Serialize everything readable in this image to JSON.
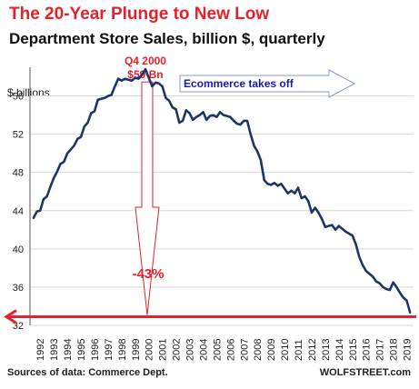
{
  "chart_data": {
    "type": "line",
    "title": "The 20-Year Plunge to New Low",
    "subtitle": "Department Store Sales, billion $, quarterly",
    "ylabel": "$ billions",
    "xlabel": "",
    "ylim": [
      32,
      59
    ],
    "xlim": [
      1991.75,
      2020.0
    ],
    "grid": "horizontal",
    "y_ticks": [
      "32",
      "36",
      "40",
      "44",
      "48",
      "52",
      "56"
    ],
    "x_ticks": [
      "1992",
      "1993",
      "1994",
      "1995",
      "1996",
      "1997",
      "1998",
      "1999",
      "2000",
      "2001",
      "2002",
      "2003",
      "2004",
      "2005",
      "2006",
      "2007",
      "2008",
      "2009",
      "2010",
      "2011",
      "2012",
      "2013",
      "2014",
      "2015",
      "2016",
      "2017",
      "2018",
      "2019"
    ],
    "series": [
      {
        "name": "",
        "x": [
          1992.0,
          1992.25,
          1992.5,
          1992.75,
          1993.0,
          1993.25,
          1993.5,
          1993.75,
          1994.0,
          1994.25,
          1994.5,
          1994.75,
          1995.0,
          1995.25,
          1995.5,
          1995.75,
          1996.0,
          1996.25,
          1996.5,
          1996.75,
          1997.0,
          1997.25,
          1997.5,
          1997.75,
          1998.0,
          1998.25,
          1998.5,
          1998.75,
          1999.0,
          1999.25,
          1999.5,
          1999.75,
          2000.0,
          2000.25,
          2000.5,
          2000.75,
          2001.0,
          2001.25,
          2001.5,
          2001.75,
          2002.0,
          2002.25,
          2002.5,
          2002.75,
          2003.0,
          2003.25,
          2003.5,
          2003.75,
          2004.0,
          2004.25,
          2004.5,
          2004.75,
          2005.0,
          2005.25,
          2005.5,
          2005.75,
          2006.0,
          2006.25,
          2006.5,
          2006.75,
          2007.0,
          2007.25,
          2007.5,
          2007.75,
          2008.0,
          2008.25,
          2008.5,
          2008.75,
          2009.0,
          2009.25,
          2009.5,
          2009.75,
          2010.0,
          2010.25,
          2010.5,
          2010.75,
          2011.0,
          2011.25,
          2011.5,
          2011.75,
          2012.0,
          2012.25,
          2012.5,
          2012.75,
          2013.0,
          2013.25,
          2013.5,
          2013.75,
          2014.0,
          2014.25,
          2014.5,
          2014.75,
          2015.0,
          2015.25,
          2015.5,
          2015.75,
          2016.0,
          2016.25,
          2016.5,
          2016.75,
          2017.0,
          2017.25,
          2017.5,
          2017.75,
          2018.0,
          2018.25,
          2018.5,
          2018.75,
          2019.0,
          2019.25,
          2019.5,
          2019.75
        ],
        "values": [
          43.2,
          43.9,
          44.0,
          45.2,
          45.5,
          46.5,
          47.4,
          48.1,
          48.9,
          49.1,
          50.0,
          50.4,
          50.8,
          51.5,
          51.7,
          52.8,
          53.2,
          54.2,
          54.4,
          55.6,
          55.7,
          55.8,
          56.0,
          56.1,
          57.0,
          57.8,
          57.6,
          57.8,
          57.7,
          57.6,
          57.9,
          57.8,
          58.2,
          58.8,
          57.9,
          57.0,
          57.4,
          57.3,
          57.0,
          55.8,
          55.5,
          54.8,
          54.6,
          53.2,
          53.4,
          54.5,
          54.2,
          53.5,
          53.8,
          54.0,
          54.3,
          53.5,
          53.9,
          54.0,
          53.8,
          54.3,
          54.0,
          53.9,
          53.8,
          53.4,
          53.1,
          53.0,
          53.4,
          53.4,
          52.0,
          50.8,
          50.2,
          49.3,
          47.2,
          46.8,
          46.7,
          46.9,
          46.6,
          46.8,
          46.3,
          45.8,
          46.1,
          45.8,
          46.4,
          45.3,
          45.5,
          45.0,
          43.8,
          44.3,
          43.8,
          43.1,
          42.3,
          42.4,
          42.5,
          42.0,
          42.4,
          42.1,
          41.8,
          41.6,
          41.4,
          40.5,
          39.2,
          38.3,
          37.7,
          37.4,
          37.1,
          36.6,
          36.4,
          36.0,
          35.8,
          35.7,
          36.5,
          36.0,
          35.4,
          34.9,
          34.6,
          33.3
        ]
      }
    ],
    "low_line_value": 32.9,
    "annotations": {
      "peak_label_line1": "Q4 2000",
      "peak_label_line2": "$59 Bn",
      "ecommerce_label": "Ecommerce takes off",
      "drop_label": "-43%"
    }
  },
  "footer": {
    "source": "Sources of data: Commerce Dept.",
    "brand": "WOLFSTREET.com"
  },
  "colors": {
    "title": "#e8202a",
    "line": "#1f3569",
    "accent_red": "#e8202a",
    "ecommerce_text": "#1a1aa8",
    "grid": "#d9d9d9"
  }
}
